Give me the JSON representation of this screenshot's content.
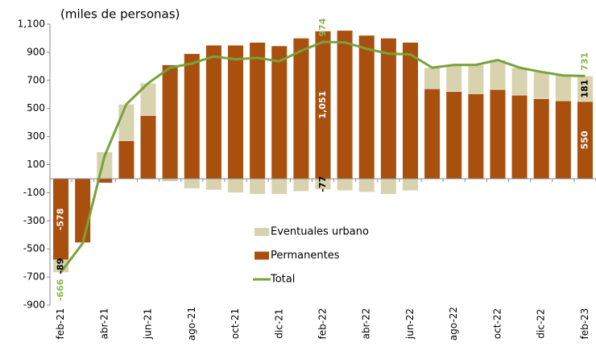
{
  "chart_data": {
    "type": "stacked_bar_line",
    "title": "(miles de personas)",
    "categories": [
      "feb-21",
      null,
      "abr-21",
      null,
      "jun-21",
      null,
      "ago-21",
      null,
      "oct-21",
      null,
      "dic-21",
      null,
      "feb-22",
      null,
      "abr-22",
      null,
      "jun-22",
      null,
      "ago-22",
      null,
      "oct-22",
      null,
      "dic-22",
      null,
      "feb-23"
    ],
    "series": [
      {
        "name": "Eventuales urbano",
        "color": "#d8d2ae",
        "label_color": "#000000",
        "values": [
          -89,
          -5,
          190,
          260,
          230,
          -20,
          -70,
          -80,
          -100,
          -110,
          -110,
          -90,
          -77,
          -85,
          -95,
          -110,
          -85,
          150,
          190,
          205,
          210,
          195,
          190,
          180,
          181
        ],
        "value_labels": [
          "-89",
          null,
          null,
          null,
          null,
          null,
          null,
          null,
          null,
          null,
          null,
          null,
          "-77",
          null,
          null,
          null,
          null,
          null,
          null,
          null,
          null,
          null,
          null,
          null,
          "181"
        ]
      },
      {
        "name": "Permanentes",
        "color": "#a9500f",
        "label_color": "#ffffff",
        "values": [
          -578,
          -455,
          -30,
          270,
          450,
          810,
          890,
          950,
          950,
          970,
          945,
          1000,
          1051,
          1055,
          1020,
          1000,
          970,
          640,
          620,
          605,
          635,
          595,
          570,
          555,
          550
        ],
        "value_labels": [
          "-578",
          null,
          null,
          null,
          null,
          null,
          null,
          null,
          null,
          null,
          null,
          null,
          "1,051",
          null,
          null,
          null,
          null,
          null,
          null,
          null,
          null,
          null,
          null,
          null,
          "550"
        ]
      },
      {
        "name": "Total",
        "type": "line",
        "color": "#77a33a",
        "label_color": "#8db550",
        "values": [
          -666,
          -460,
          160,
          530,
          680,
          790,
          820,
          870,
          850,
          860,
          835,
          910,
          974,
          970,
          925,
          890,
          885,
          790,
          810,
          810,
          845,
          790,
          760,
          735,
          731
        ],
        "value_labels": [
          "-666",
          null,
          null,
          null,
          null,
          null,
          null,
          null,
          null,
          null,
          null,
          null,
          "974",
          null,
          null,
          null,
          null,
          null,
          null,
          null,
          null,
          null,
          null,
          null,
          "731"
        ]
      }
    ],
    "ylim": [
      -900,
      1100
    ],
    "yticks": [
      -900,
      -700,
      -500,
      -300,
      -100,
      100,
      300,
      500,
      700,
      900,
      {
        "value": 1100,
        "label": "1,100"
      }
    ],
    "grid": false
  }
}
